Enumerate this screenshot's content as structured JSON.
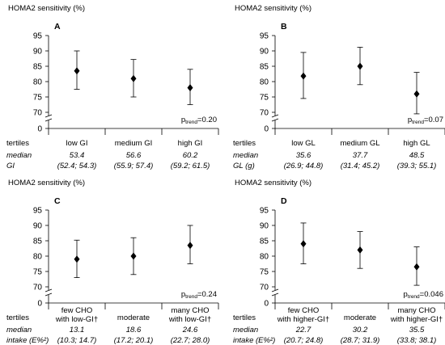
{
  "chart_data": [
    {
      "type": "scatter",
      "panel_label": "A",
      "title": "HOMA2  sensitivity  (%)",
      "y_ticks": [
        "0",
        "70",
        "75",
        "80",
        "85",
        "90",
        "95"
      ],
      "ylim": [
        70,
        95
      ],
      "axis_break": true,
      "error_bars": true,
      "categories": [
        "low  GI",
        "medium  GI",
        "high  GI"
      ],
      "values": [
        83.5,
        81.0,
        78.0
      ],
      "ci_low": [
        77.5,
        75.0,
        72.5
      ],
      "ci_high": [
        90.0,
        87.2,
        84.0
      ],
      "p_sub": "trend",
      "p_value": "=0.20",
      "row_labels": [
        "tertiles",
        "median",
        "GI"
      ],
      "medians": [
        "53.4",
        "56.6",
        "60.2"
      ],
      "ranges": [
        "(52.4; 54.3)",
        "(55.9; 57.4)",
        "(59.2; 61.5)"
      ]
    },
    {
      "type": "scatter",
      "panel_label": "B",
      "title": "HOMA2  sensitivity  (%)",
      "y_ticks": [
        "0",
        "70",
        "75",
        "80",
        "85",
        "90",
        "95"
      ],
      "ylim": [
        70,
        95
      ],
      "axis_break": true,
      "error_bars": true,
      "categories": [
        "low  GL",
        "medium  GL",
        "high  GL"
      ],
      "values": [
        81.8,
        85.0,
        76.0
      ],
      "ci_low": [
        74.5,
        79.0,
        69.5
      ],
      "ci_high": [
        89.5,
        91.2,
        83.0
      ],
      "p_sub": "trend",
      "p_value": "=0.07",
      "row_labels": [
        "tertiles",
        "median",
        "GL (g)"
      ],
      "medians": [
        "35.6",
        "37.7",
        "48.5"
      ],
      "ranges": [
        "(26.9; 44.8)",
        "(31.4; 45.2)",
        "(39.3; 55.1)"
      ]
    },
    {
      "type": "scatter",
      "panel_label": "C",
      "title": "HOMA2  sensitivity  (%)",
      "y_ticks": [
        "0",
        "70",
        "75",
        "80",
        "85",
        "90",
        "95"
      ],
      "ylim": [
        70,
        95
      ],
      "axis_break": true,
      "error_bars": true,
      "categories": [
        [
          "few CHO",
          "with low-GI†"
        ],
        [
          "moderate"
        ],
        [
          "many CHO",
          "with low-GI†"
        ]
      ],
      "values": [
        79.0,
        80.0,
        83.5
      ],
      "ci_low": [
        73.0,
        74.0,
        77.5
      ],
      "ci_high": [
        85.2,
        86.0,
        90.0
      ],
      "p_sub": "trend",
      "p_value": "=0.24",
      "row_labels": [
        "tertiles",
        "median",
        "intake (E%²)"
      ],
      "medians": [
        "13.1",
        "18.6",
        "24.6"
      ],
      "ranges": [
        "(10.3; 14.7)",
        "(17.2; 20.1)",
        "(22.7; 28.0)"
      ]
    },
    {
      "type": "scatter",
      "panel_label": "D",
      "title": "HOMA2  sensitivity  (%)",
      "y_ticks": [
        "0",
        "70",
        "75",
        "80",
        "85",
        "90",
        "95"
      ],
      "ylim": [
        70,
        95
      ],
      "axis_break": true,
      "error_bars": true,
      "categories": [
        [
          "few CHO",
          "with higher-GI†"
        ],
        [
          "moderate"
        ],
        [
          "many CHO",
          "with higher-GI†"
        ]
      ],
      "values": [
        84.0,
        82.0,
        76.5
      ],
      "ci_low": [
        77.5,
        76.0,
        70.5
      ],
      "ci_high": [
        90.8,
        88.0,
        83.0
      ],
      "p_sub": "trend",
      "p_value": "=0.046",
      "row_labels": [
        "tertiles",
        "median",
        "intake (E%²)"
      ],
      "medians": [
        "22.7",
        "30.2",
        "35.5"
      ],
      "ranges": [
        "(20.7; 24.8)",
        "(28.7; 31.9)",
        "(33.8; 38.1)"
      ]
    }
  ]
}
